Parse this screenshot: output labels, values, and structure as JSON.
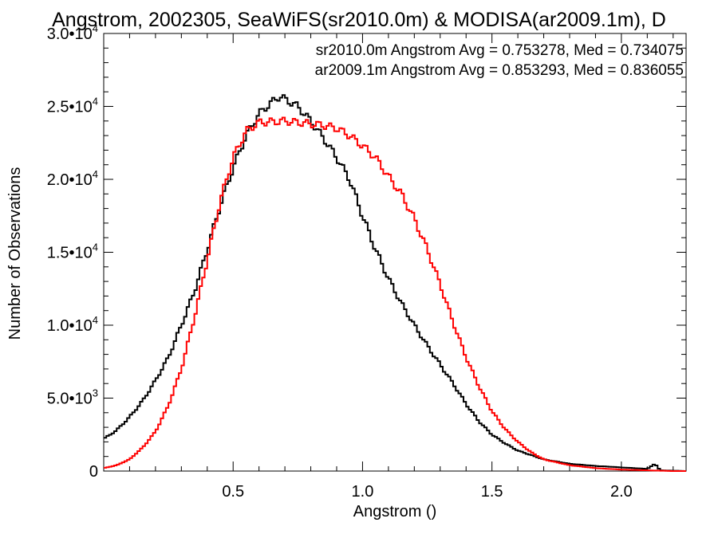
{
  "chart_data": {
    "type": "line",
    "step": true,
    "title": "Angstrom, 2002305, SeaWiFS(sr2010.0m) & MODISA(ar2009.1m), D",
    "xlabel": "Angstrom ()",
    "ylabel": "Number of Observations",
    "xlim": [
      0.0,
      2.25
    ],
    "ylim": [
      0,
      30000
    ],
    "x_ticks": [
      {
        "value": 0.5,
        "label": "0.5"
      },
      {
        "value": 1.0,
        "label": "1.0"
      },
      {
        "value": 1.5,
        "label": "1.5"
      },
      {
        "value": 2.0,
        "label": "2.0"
      }
    ],
    "y_ticks": [
      {
        "value": 0,
        "mant": "0",
        "exp": ""
      },
      {
        "value": 5000,
        "mant": "5.0•10",
        "exp": "3"
      },
      {
        "value": 10000,
        "mant": "1.0•10",
        "exp": "4"
      },
      {
        "value": 15000,
        "mant": "1.5•10",
        "exp": "4"
      },
      {
        "value": 20000,
        "mant": "2.0•10",
        "exp": "4"
      },
      {
        "value": 25000,
        "mant": "2.5•10",
        "exp": "4"
      },
      {
        "value": 30000,
        "mant": "3.0•10",
        "exp": "4"
      }
    ],
    "annotations": [
      {
        "text": "sr2010.0m Angstrom Avg = 0.753278, Med = 0.734075",
        "color": "#000000"
      },
      {
        "text": "ar2009.1m Angstrom Avg = 0.853293, Med = 0.836055",
        "color": "#ff0000"
      }
    ],
    "series": [
      {
        "color": "#000000",
        "points": [
          [
            0.0,
            2200
          ],
          [
            0.05,
            2800
          ],
          [
            0.1,
            3700
          ],
          [
            0.15,
            4800
          ],
          [
            0.2,
            6200
          ],
          [
            0.25,
            7800
          ],
          [
            0.3,
            10000
          ],
          [
            0.35,
            12300
          ],
          [
            0.4,
            15200
          ],
          [
            0.45,
            18200
          ],
          [
            0.5,
            20800
          ],
          [
            0.55,
            23000
          ],
          [
            0.6,
            24500
          ],
          [
            0.65,
            25300
          ],
          [
            0.68,
            25700
          ],
          [
            0.7,
            25500
          ],
          [
            0.75,
            25000
          ],
          [
            0.8,
            24000
          ],
          [
            0.85,
            22800
          ],
          [
            0.9,
            21500
          ],
          [
            0.95,
            20000
          ],
          [
            1.0,
            17500
          ],
          [
            1.05,
            15200
          ],
          [
            1.1,
            13200
          ],
          [
            1.15,
            11500
          ],
          [
            1.2,
            10000
          ],
          [
            1.25,
            8600
          ],
          [
            1.3,
            7300
          ],
          [
            1.35,
            6000
          ],
          [
            1.4,
            4600
          ],
          [
            1.45,
            3400
          ],
          [
            1.5,
            2500
          ],
          [
            1.55,
            1900
          ],
          [
            1.6,
            1400
          ],
          [
            1.7,
            800
          ],
          [
            1.8,
            500
          ],
          [
            1.9,
            350
          ],
          [
            2.0,
            250
          ],
          [
            2.1,
            150
          ],
          [
            2.13,
            500
          ],
          [
            2.15,
            50
          ],
          [
            2.25,
            0
          ]
        ]
      },
      {
        "color": "#ff0000",
        "points": [
          [
            0.0,
            200
          ],
          [
            0.05,
            400
          ],
          [
            0.1,
            800
          ],
          [
            0.15,
            1600
          ],
          [
            0.2,
            2700
          ],
          [
            0.25,
            4500
          ],
          [
            0.3,
            7000
          ],
          [
            0.35,
            10500
          ],
          [
            0.4,
            14500
          ],
          [
            0.45,
            18500
          ],
          [
            0.5,
            21500
          ],
          [
            0.55,
            23300
          ],
          [
            0.6,
            23900
          ],
          [
            0.7,
            24000
          ],
          [
            0.8,
            23800
          ],
          [
            0.85,
            23700
          ],
          [
            0.9,
            23500
          ],
          [
            0.95,
            23000
          ],
          [
            1.0,
            22300
          ],
          [
            1.05,
            21500
          ],
          [
            1.1,
            20200
          ],
          [
            1.15,
            19000
          ],
          [
            1.2,
            17300
          ],
          [
            1.25,
            15200
          ],
          [
            1.3,
            12800
          ],
          [
            1.35,
            10200
          ],
          [
            1.4,
            7800
          ],
          [
            1.45,
            5800
          ],
          [
            1.5,
            4100
          ],
          [
            1.55,
            2900
          ],
          [
            1.6,
            2000
          ],
          [
            1.65,
            1300
          ],
          [
            1.7,
            800
          ],
          [
            1.8,
            400
          ],
          [
            1.9,
            200
          ],
          [
            2.0,
            100
          ],
          [
            2.1,
            50
          ],
          [
            2.2,
            0
          ],
          [
            2.25,
            0
          ]
        ]
      }
    ]
  }
}
